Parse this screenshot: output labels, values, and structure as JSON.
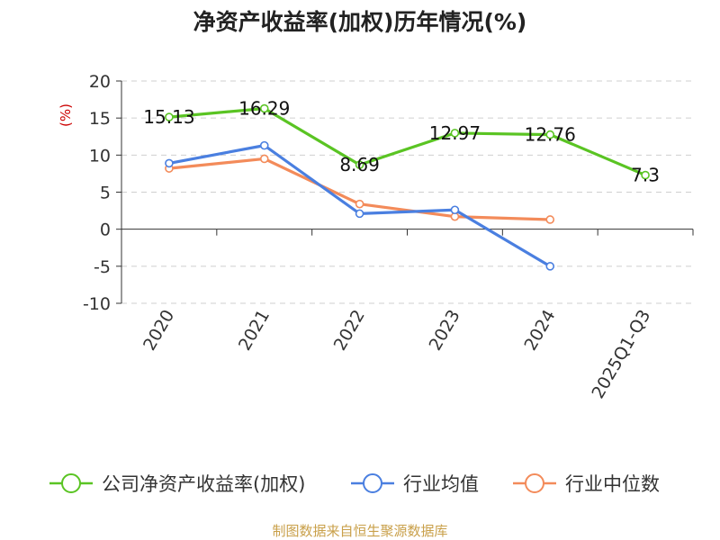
{
  "chart_data": {
    "type": "line",
    "title": "净资产收益率(加权)历年情况(%)",
    "ylabel": "(%)",
    "categories": [
      "2020",
      "2021",
      "2022",
      "2023",
      "2024",
      "2025Q1-Q3"
    ],
    "ylim": [
      -10,
      20
    ],
    "yticks": [
      20,
      15,
      10,
      5,
      0,
      -5,
      -10
    ],
    "ytick_labels": [
      "20",
      "15",
      "10",
      "5",
      "0",
      "-5",
      "-10"
    ],
    "grid": true,
    "series": [
      {
        "name": "公司净资产收益率(加权)",
        "color": "#5ac423",
        "values": [
          15.13,
          16.29,
          8.69,
          12.97,
          12.76,
          7.3
        ],
        "labels": [
          "15.13",
          "16.29",
          "8.69",
          "12.97",
          "12.76",
          "7.3"
        ]
      },
      {
        "name": "行业均值",
        "color": "#4a7fe0",
        "values": [
          8.9,
          11.3,
          2.1,
          2.6,
          -5.0,
          null
        ]
      },
      {
        "name": "行业中位数",
        "color": "#f38b5a",
        "values": [
          8.2,
          9.5,
          3.4,
          1.7,
          1.3,
          null
        ]
      }
    ],
    "legend_position": "bottom",
    "source": "制图数据来自恒生聚源数据库"
  }
}
